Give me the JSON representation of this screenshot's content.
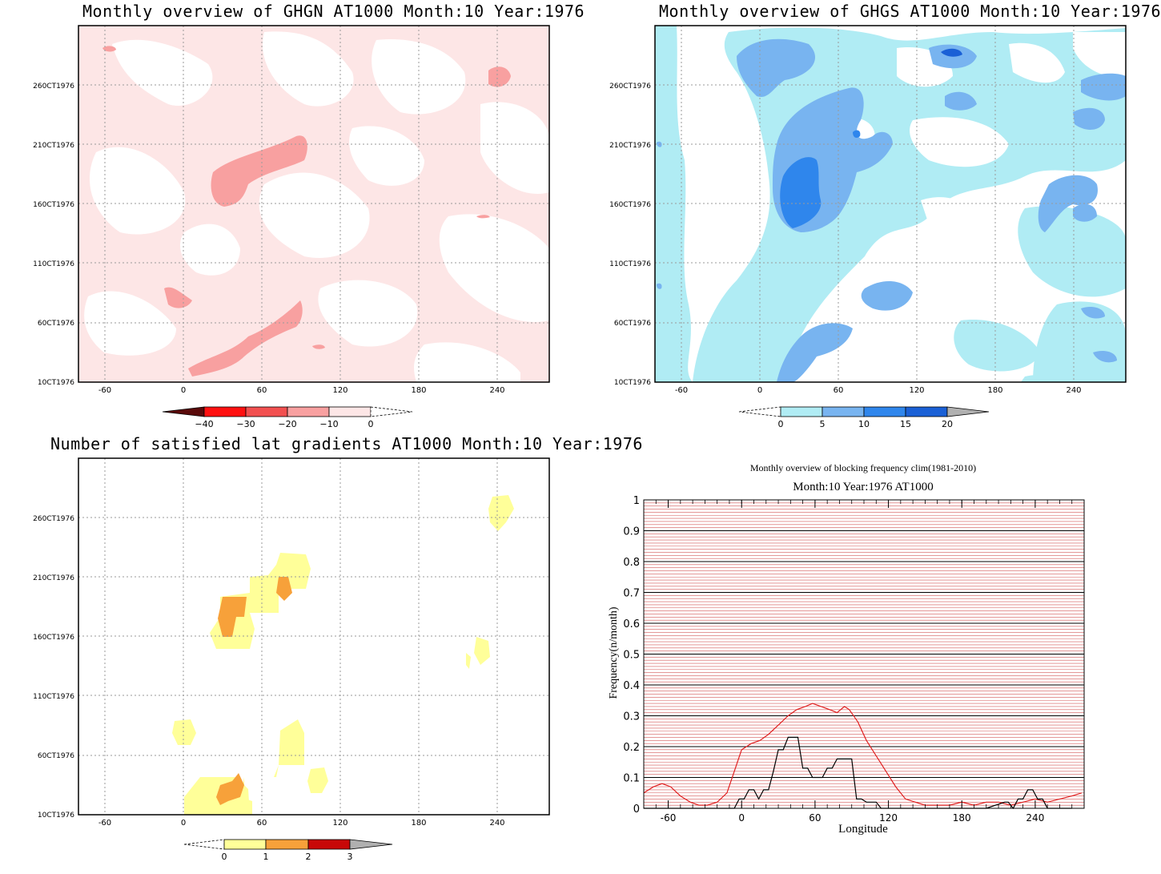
{
  "panels": {
    "ghgn": {
      "title": "Monthly overview of GHGN AT1000 Month:10 Year:1976",
      "ytick_labels": [
        "10CT1976",
        "60CT1976",
        "110CT1976",
        "160CT1976",
        "210CT1976",
        "260CT1976"
      ],
      "xtick_labels": [
        "-60",
        "0",
        "60",
        "120",
        "180",
        "240"
      ],
      "colorbar": {
        "labels": [
          "−40",
          "−30",
          "−20",
          "−10",
          "0"
        ],
        "colors": [
          "#5a0a0a",
          "#ff1010",
          "#f25050",
          "#f8a0a0",
          "#fde6e6"
        ]
      }
    },
    "ghgs": {
      "title": "Monthly overview of GHGS AT1000 Month:10 Year:1976",
      "ytick_labels": [
        "10CT1976",
        "60CT1976",
        "110CT1976",
        "160CT1976",
        "210CT1976",
        "260CT1976"
      ],
      "xtick_labels": [
        "-60",
        "0",
        "60",
        "120",
        "180",
        "240"
      ],
      "colorbar": {
        "labels": [
          "0",
          "5",
          "10",
          "15",
          "20"
        ],
        "colors": [
          "#b0ecf4",
          "#78b4f0",
          "#2f86ec",
          "#1a60d6",
          "#b0b0b0"
        ]
      }
    },
    "gradients": {
      "title": "Number of satisfied lat gradients AT1000 Month:10 Year:1976",
      "ytick_labels": [
        "10CT1976",
        "60CT1976",
        "110CT1976",
        "160CT1976",
        "210CT1976",
        "260CT1976"
      ],
      "xtick_labels": [
        "-60",
        "0",
        "60",
        "120",
        "180",
        "240"
      ],
      "colorbar": {
        "labels": [
          "0",
          "1",
          "2",
          "3"
        ],
        "colors": [
          "#ffff99",
          "#f7a13a",
          "#c80808",
          "#b0b0b0"
        ]
      }
    }
  },
  "chart_data": {
    "type": "line",
    "title": "Monthly overview of blocking frequency clim(1981-2010)",
    "subtitle": "Month:10 Year:1976  AT1000",
    "xlabel": "Longitude",
    "ylabel": "Frequency(n/month)",
    "xlim": [
      -80,
      280
    ],
    "ylim": [
      0,
      1
    ],
    "xtick_labels": [
      "-60",
      "0",
      "60",
      "120",
      "180",
      "240"
    ],
    "xticks": [
      -60,
      0,
      60,
      120,
      180,
      240
    ],
    "ytick_labels": [
      "0",
      "0.1",
      "0.2",
      "0.3",
      "0.4",
      "0.5",
      "0.6",
      "0.7",
      "0.8",
      "0.9",
      "1"
    ],
    "yticks": [
      0,
      0.1,
      0.2,
      0.3,
      0.4,
      0.5,
      0.6,
      0.7,
      0.8,
      0.9,
      1
    ],
    "grid": true,
    "series": [
      {
        "color": "#e02020",
        "x": [
          -80,
          -72,
          -65,
          -58,
          -50,
          -42,
          -35,
          -28,
          -20,
          -12,
          -6,
          0,
          8,
          15,
          22,
          30,
          38,
          45,
          52,
          58,
          65,
          72,
          78,
          84,
          88,
          95,
          102,
          110,
          118,
          126,
          134,
          142,
          150,
          160,
          170,
          180,
          190,
          200,
          210,
          220,
          230,
          240,
          250,
          260,
          270,
          278
        ],
        "y": [
          0.05,
          0.07,
          0.08,
          0.07,
          0.04,
          0.02,
          0.01,
          0.01,
          0.02,
          0.05,
          0.12,
          0.19,
          0.21,
          0.22,
          0.24,
          0.27,
          0.3,
          0.32,
          0.33,
          0.34,
          0.33,
          0.32,
          0.31,
          0.33,
          0.32,
          0.28,
          0.22,
          0.17,
          0.12,
          0.07,
          0.03,
          0.02,
          0.01,
          0.01,
          0.01,
          0.02,
          0.01,
          0.02,
          0.02,
          0.01,
          0.02,
          0.03,
          0.02,
          0.03,
          0.04,
          0.05
        ]
      },
      {
        "color": "#000000",
        "x": [
          -80,
          -20,
          -6,
          -2,
          2,
          6,
          10,
          14,
          18,
          22,
          26,
          30,
          34,
          38,
          42,
          46,
          50,
          54,
          58,
          62,
          66,
          70,
          74,
          78,
          82,
          86,
          90,
          94,
          98,
          102,
          106,
          110,
          114,
          160,
          200,
          215,
          218,
          222,
          226,
          230,
          234,
          238,
          242,
          246,
          250,
          254,
          270
        ],
        "y": [
          0,
          0,
          0,
          0.03,
          0.03,
          0.06,
          0.06,
          0.03,
          0.06,
          0.06,
          0.12,
          0.19,
          0.19,
          0.23,
          0.23,
          0.23,
          0.13,
          0.13,
          0.1,
          0.1,
          0.1,
          0.13,
          0.13,
          0.16,
          0.16,
          0.16,
          0.16,
          0.03,
          0.03,
          0.02,
          0.02,
          0.02,
          0,
          0,
          0,
          0.02,
          0.02,
          0,
          0.03,
          0.03,
          0.06,
          0.06,
          0.03,
          0.03,
          0,
          0,
          0
        ]
      }
    ]
  }
}
